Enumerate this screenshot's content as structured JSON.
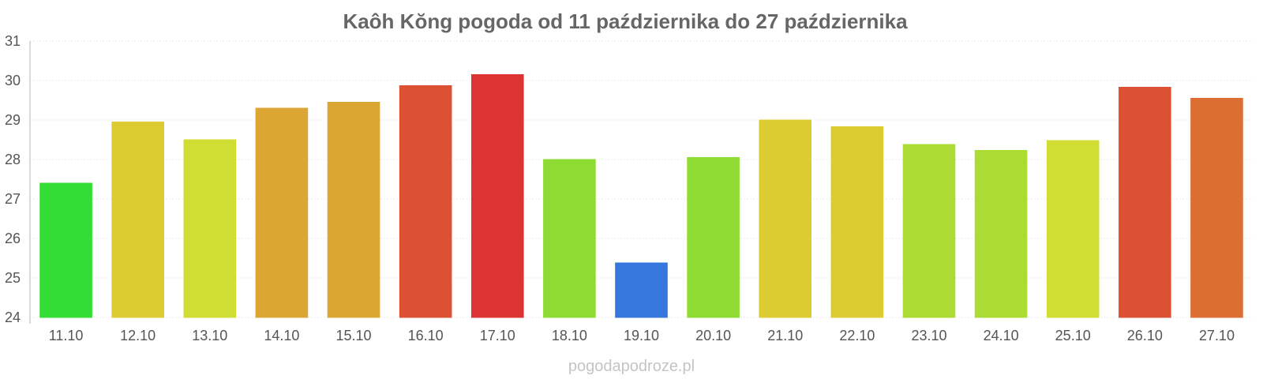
{
  "chart_data": {
    "type": "bar",
    "title": "Kaôh Kŏng pogoda od 11 października do 27 października",
    "categories": [
      "11.10",
      "12.10",
      "13.10",
      "14.10",
      "15.10",
      "16.10",
      "17.10",
      "18.10",
      "19.10",
      "20.10",
      "21.10",
      "22.10",
      "23.10",
      "24.10",
      "25.10",
      "26.10",
      "27.10"
    ],
    "values": [
      27.4,
      28.95,
      28.5,
      29.3,
      29.45,
      29.87,
      30.15,
      28.0,
      25.38,
      28.05,
      29.0,
      28.83,
      28.38,
      28.23,
      28.48,
      29.83,
      29.55
    ],
    "colors": [
      "#33dd33",
      "#dccb33",
      "#d0dd33",
      "#dba633",
      "#dba633",
      "#dc5033",
      "#dc3333",
      "#8edc33",
      "#3577dc",
      "#8edc33",
      "#dccb33",
      "#dccb33",
      "#acdc33",
      "#acdc33",
      "#d0dd33",
      "#dc5033",
      "#dc6e33"
    ],
    "ylim": [
      24,
      31
    ],
    "yticks": [
      "24",
      "25",
      "26",
      "27",
      "28",
      "29",
      "30",
      "31"
    ],
    "grid": true,
    "xlabel": "",
    "ylabel": ""
  },
  "watermark": "pogodapodroze.pl"
}
